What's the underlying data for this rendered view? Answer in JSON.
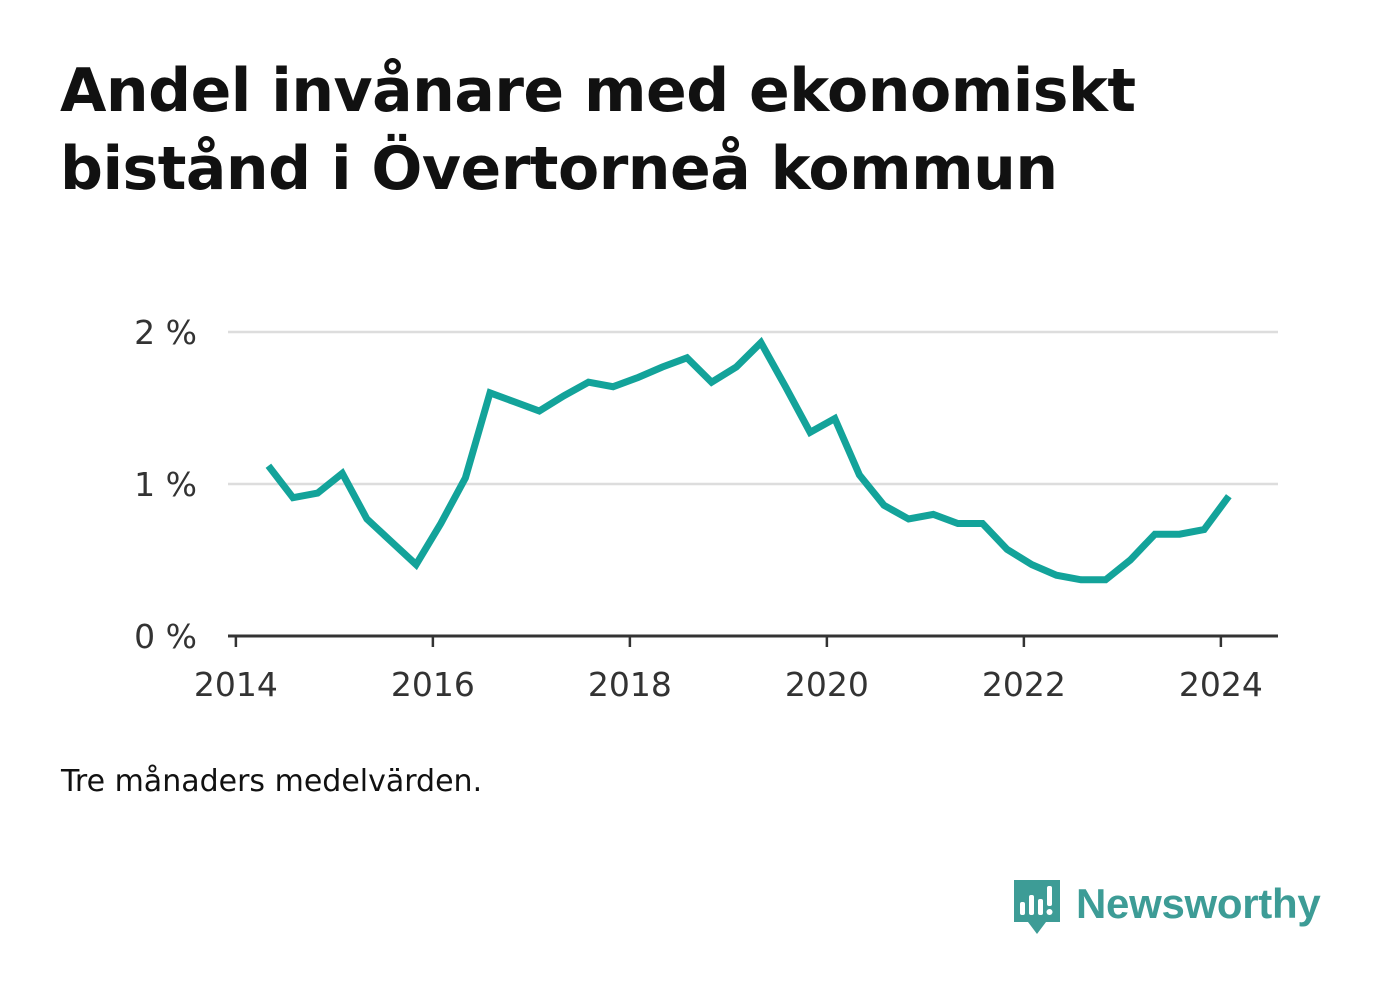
{
  "title": "Andel invånare med ekonomiskt bistånd i Övertorneå kommun",
  "note": "Tre månaders medelvärden.",
  "brand": {
    "name": "Newsworthy",
    "icon": "newsworthy-logo-icon",
    "color": "#3d9c96"
  },
  "colors": {
    "line": "#13a39a",
    "grid": "#dddddd",
    "axis": "#333333"
  },
  "chart_data": {
    "type": "line",
    "title": "Andel invånare med ekonomiskt bistånd i Övertorneå kommun",
    "xlabel": "",
    "ylabel": "",
    "x_ticks": [
      "2014",
      "2016",
      "2018",
      "2020",
      "2022",
      "2024"
    ],
    "y_ticks": [
      "0 %",
      "1 %",
      "2 %"
    ],
    "ylim": [
      0,
      2
    ],
    "xlim": [
      2013.92,
      2024.58
    ],
    "grid": true,
    "series": [
      {
        "x": [
          2014.33,
          2014.58,
          2014.83,
          2015.08,
          2015.33,
          2015.58,
          2015.83,
          2016.08,
          2016.33,
          2016.58,
          2016.83,
          2017.08,
          2017.33,
          2017.58,
          2017.83,
          2018.08,
          2018.33,
          2018.58,
          2018.83,
          2019.08,
          2019.33,
          2019.58,
          2019.83,
          2020.08,
          2020.33,
          2020.58,
          2020.83,
          2021.08,
          2021.33,
          2021.58,
          2021.83,
          2022.08,
          2022.33,
          2022.58,
          2022.83,
          2023.08,
          2023.33,
          2023.58,
          2023.83,
          2024.08
        ],
        "values": [
          1.12,
          0.91,
          0.94,
          1.07,
          0.77,
          0.62,
          0.47,
          0.74,
          1.04,
          1.6,
          1.54,
          1.48,
          1.58,
          1.67,
          1.64,
          1.7,
          1.77,
          1.83,
          1.67,
          1.77,
          1.93,
          1.64,
          1.34,
          1.43,
          1.06,
          0.86,
          0.77,
          0.8,
          0.74,
          0.74,
          0.57,
          0.47,
          0.4,
          0.37,
          0.37,
          0.5,
          0.67,
          0.67,
          0.7,
          0.92
        ]
      }
    ]
  }
}
